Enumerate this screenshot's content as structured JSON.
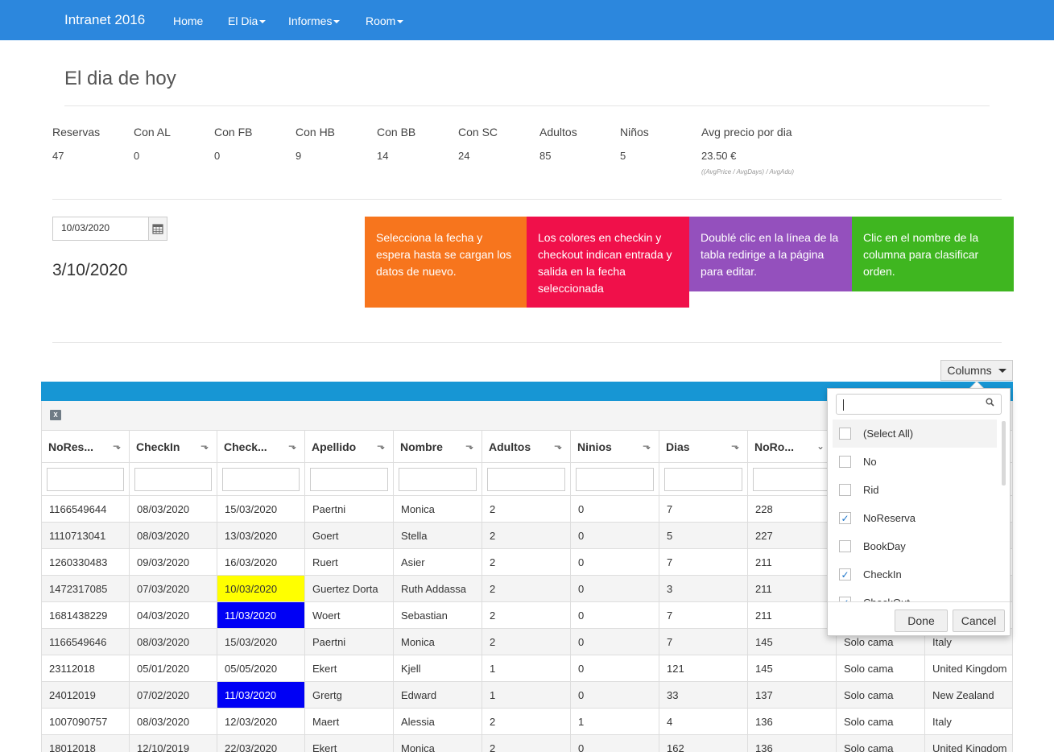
{
  "navbar": {
    "brand": "Intranet 2016",
    "items": [
      {
        "label": "Home",
        "dropdown": false
      },
      {
        "label": "El Dia",
        "dropdown": true
      },
      {
        "label": "Informes",
        "dropdown": true
      },
      {
        "label": "Room",
        "dropdown": true
      }
    ]
  },
  "page": {
    "title": "El dia de hoy"
  },
  "stats": [
    {
      "label": "Reservas",
      "value": "47"
    },
    {
      "label": "Con AL",
      "value": "0"
    },
    {
      "label": "Con FB",
      "value": "0"
    },
    {
      "label": "Con HB",
      "value": "9"
    },
    {
      "label": "Con BB",
      "value": "14"
    },
    {
      "label": "Con SC",
      "value": "24"
    },
    {
      "label": "Adultos",
      "value": "85"
    },
    {
      "label": "Niños",
      "value": "5"
    },
    {
      "label": "Avg precio por dia",
      "value": "23.50 €",
      "note": "((AvgPrice / AvgDays) / AvgAdu)"
    }
  ],
  "date_picker": {
    "value": "10/03/2020"
  },
  "selected_date": "3/10/2020",
  "info_tiles": [
    {
      "text": "Selecciona la fecha y espera hasta se cargan los datos de nuevo.",
      "color": "#f7751d"
    },
    {
      "text": "Los colores en checkin y checkout indican entrada y salida en la fecha seleccionada",
      "color": "#f0104a"
    },
    {
      "text": "Doublé clic en la línea de la tabla redirige a la página para editar.",
      "color": "#9450bd"
    },
    {
      "text": "Clic en el nombre de la columna para clasificar orden.",
      "color": "#3fb620"
    }
  ],
  "columns_button": "Columns",
  "grid": {
    "headers": [
      "NoRes...",
      "CheckIn",
      "Check...",
      "Apellido",
      "Nombre",
      "Adultos",
      "Ninios",
      "Dias",
      "NoRo...",
      "",
      ""
    ],
    "rows": [
      [
        "1166549644",
        "08/03/2020",
        "15/03/2020",
        "Paertni",
        "Monica",
        "2",
        "0",
        "7",
        "228",
        "",
        ""
      ],
      [
        "1110713041",
        "08/03/2020",
        "13/03/2020",
        "Goert",
        "Stella",
        "2",
        "0",
        "5",
        "227",
        "",
        ""
      ],
      [
        "1260330483",
        "09/03/2020",
        "16/03/2020",
        "Ruert",
        "Asier",
        "2",
        "0",
        "7",
        "211",
        "",
        ""
      ],
      [
        "1472317085",
        "07/03/2020",
        "10/03/2020",
        "Guertez Dorta",
        "Ruth Addassa",
        "2",
        "0",
        "3",
        "211",
        "",
        ""
      ],
      [
        "1681438229",
        "04/03/2020",
        "11/03/2020",
        "Woert",
        "Sebastian",
        "2",
        "0",
        "7",
        "211",
        "",
        ""
      ],
      [
        "1166549646",
        "08/03/2020",
        "15/03/2020",
        "Paertni",
        "Monica",
        "2",
        "0",
        "7",
        "145",
        "Solo cama",
        "Italy"
      ],
      [
        "23112018",
        "05/01/2020",
        "05/05/2020",
        "Ekert",
        "Kjell",
        "1",
        "0",
        "121",
        "145",
        "Solo cama",
        "United Kingdom"
      ],
      [
        "24012019",
        "07/02/2020",
        "11/03/2020",
        "Grertg",
        "Edward",
        "1",
        "0",
        "33",
        "137",
        "Solo cama",
        "New Zealand"
      ],
      [
        "1007090757",
        "08/03/2020",
        "12/03/2020",
        "Maert",
        "Alessia",
        "2",
        "1",
        "4",
        "136",
        "Solo cama",
        "Italy"
      ],
      [
        "18012018",
        "12/10/2019",
        "22/03/2020",
        "Ekert",
        "Monica",
        "2",
        "0",
        "162",
        "136",
        "Solo cama",
        "United Kingdom"
      ]
    ],
    "highlights": [
      {
        "row": 3,
        "col": 2,
        "color": "#ffff00",
        "text_color": "#333333"
      },
      {
        "row": 4,
        "col": 2,
        "color": "#0000f5",
        "text_color": "#ffffff"
      },
      {
        "row": 7,
        "col": 2,
        "color": "#0000f5",
        "text_color": "#ffffff"
      }
    ]
  },
  "column_chooser": {
    "search_value": "",
    "options": [
      {
        "label": "(Select All)",
        "checked": false
      },
      {
        "label": "No",
        "checked": false
      },
      {
        "label": "Rid",
        "checked": false
      },
      {
        "label": "NoReserva",
        "checked": true
      },
      {
        "label": "BookDay",
        "checked": false
      },
      {
        "label": "CheckIn",
        "checked": true
      },
      {
        "label": "CheckOut",
        "checked": true
      }
    ],
    "done_label": "Done",
    "cancel_label": "Cancel"
  }
}
